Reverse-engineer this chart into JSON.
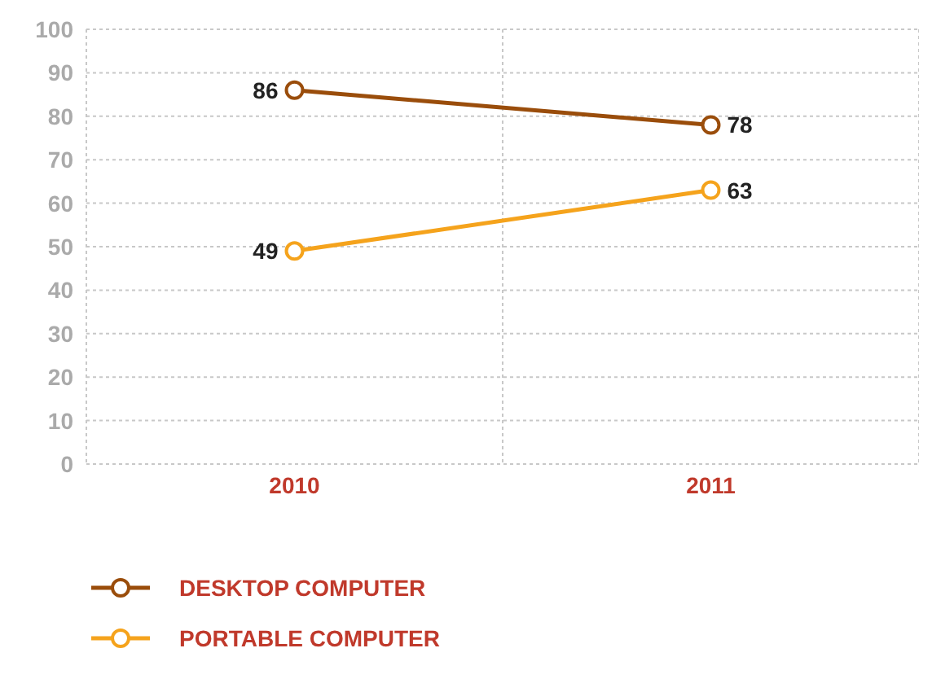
{
  "chart_data": {
    "type": "line",
    "categories": [
      "2010",
      "2011"
    ],
    "series": [
      {
        "name": "DESKTOP COMPUTER",
        "color": "#9a4d0b",
        "values": [
          86,
          78
        ]
      },
      {
        "name": "PORTABLE COMPUTER",
        "color": "#f5a31c",
        "values": [
          49,
          63
        ]
      }
    ],
    "ylim": [
      0,
      100
    ],
    "yticks": [
      0,
      10,
      20,
      30,
      40,
      50,
      60,
      70,
      80,
      90,
      100
    ],
    "grid": true,
    "legend": "bottom left",
    "marker": "circle",
    "line_style": "solid",
    "data_labels": true
  }
}
